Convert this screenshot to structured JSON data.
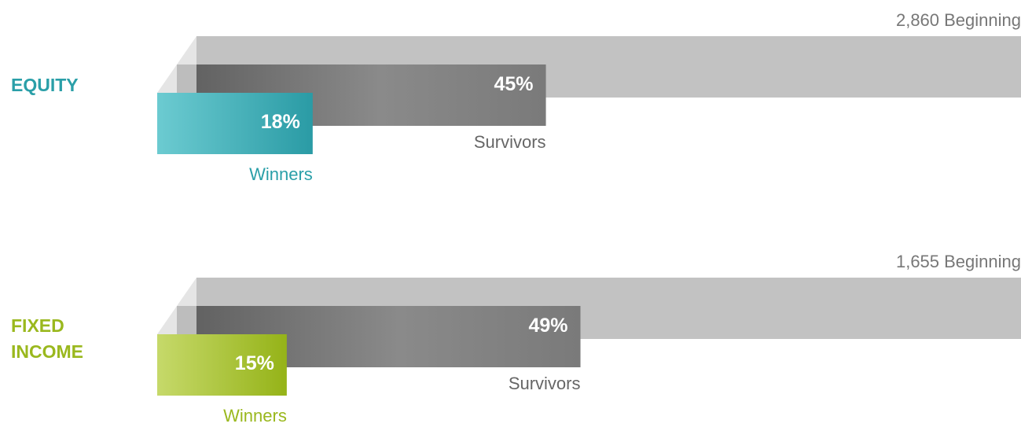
{
  "chart_data": {
    "type": "bar",
    "groups": [
      {
        "name": "EQUITY",
        "name_lines": [
          "EQUITY"
        ],
        "beginning_count": 2860,
        "beginning_label": "2,860 Beginning",
        "survivors_pct": 45,
        "survivors_value_label": "45%",
        "survivors_label": "Survivors",
        "winners_pct": 18,
        "winners_value_label": "18%",
        "winners_label": "Winners",
        "color": "#2a9fa8"
      },
      {
        "name": "FIXED INCOME",
        "name_lines": [
          "FIXED",
          "INCOME"
        ],
        "beginning_count": 1655,
        "beginning_label": "1,655 Beginning",
        "survivors_pct": 49,
        "survivors_value_label": "49%",
        "survivors_label": "Survivors",
        "winners_pct": 15,
        "winners_value_label": "15%",
        "winners_label": "Winners",
        "color": "#9ab81e"
      }
    ],
    "colors": {
      "beginning": "#c2c2c2",
      "survivors": "#8c8c8c",
      "caption": "#666666"
    }
  }
}
